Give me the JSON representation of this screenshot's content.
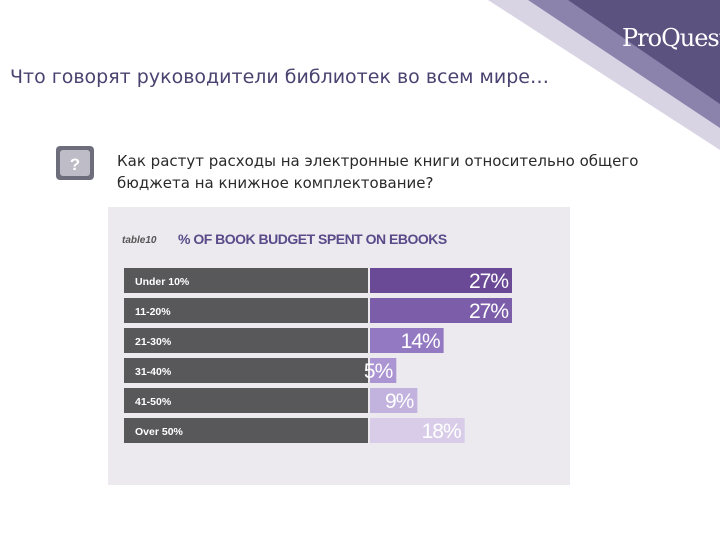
{
  "slide": {
    "title": "Что говорят руководители библиотек во всем мире…",
    "logo_text": "ProQuest",
    "badge_symbol": "?",
    "question": "Как растут расходы на электронные книги относительно общего бюджета на книжное комплектование?"
  },
  "colors": {
    "title": "#4a4270",
    "corner_dark": "#5b5280",
    "corner_light": "#8c83ad",
    "label_bar": "#58585a",
    "value_bars": [
      "#6a4a96",
      "#7c5daa",
      "#9378c2",
      "#ab95d2",
      "#c2b2de",
      "#d8cce8"
    ]
  },
  "chart_data": {
    "type": "bar",
    "table_label": "table10",
    "title": "% OF BOOK BUDGET SPENT ON EBOOKS",
    "categories": [
      "Under 10%",
      "11-20%",
      "21-30%",
      "31-40%",
      "41-50%",
      "Over 50%"
    ],
    "values": [
      27,
      27,
      14,
      5,
      9,
      18
    ],
    "value_labels": [
      "27%",
      "27%",
      "14%",
      "5%",
      "9%",
      "18%"
    ],
    "xlim": [
      0,
      27
    ],
    "grid": false,
    "legend": "none"
  }
}
